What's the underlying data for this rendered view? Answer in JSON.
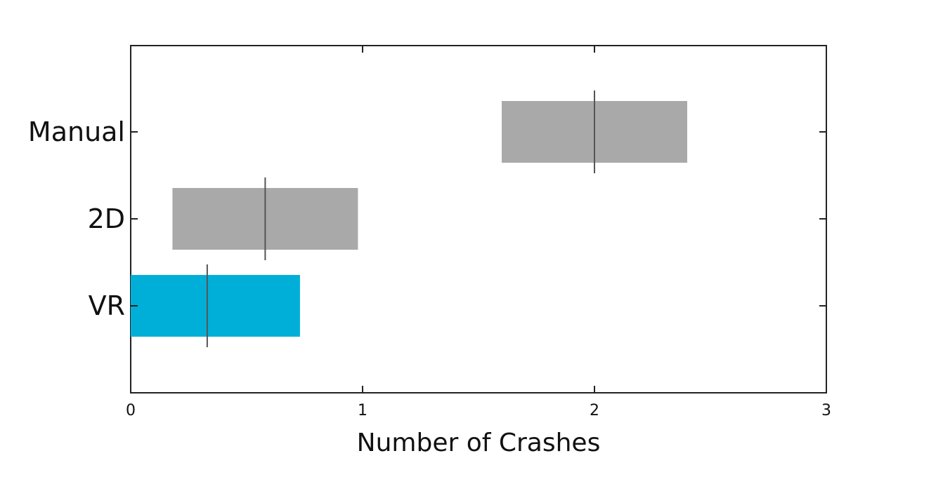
{
  "chart_data": {
    "type": "bar",
    "orientation": "horizontal",
    "categories": [
      "Manual",
      "2D",
      "VR"
    ],
    "series": [
      {
        "intervals": [
          {
            "category": "Manual",
            "low": 1.6,
            "high": 2.4,
            "mean": 2.0,
            "color": "#A9A9A9"
          },
          {
            "category": "2D",
            "low": 0.18,
            "high": 0.98,
            "mean": 0.58,
            "color": "#A9A9A9"
          },
          {
            "category": "VR",
            "low": 0.0,
            "high": 0.73,
            "mean": 0.33,
            "color": "#00AFD7"
          }
        ]
      }
    ],
    "title": "",
    "xlabel": "Number of Crashes",
    "ylabel": "",
    "xlim": [
      0,
      3
    ],
    "xticks": [
      "0",
      "1",
      "2",
      "3"
    ],
    "grid": false,
    "legend": "none"
  }
}
